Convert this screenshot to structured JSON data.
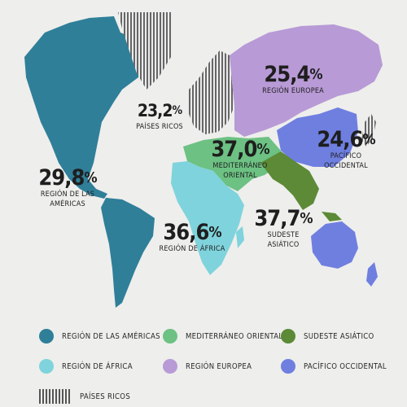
{
  "colors": {
    "americas": "#2f7f99",
    "africa": "#7fd3dc",
    "europe": "#b89ad6",
    "mediterranean": "#6cc183",
    "southeast_asia": "#5c8a36",
    "western_pacific": "#6f7fe0",
    "rich_countries_stripes": "#555555"
  },
  "regions": [
    {
      "key": "americas",
      "value": "29,8",
      "unit": "%",
      "name": "Región de las Américas"
    },
    {
      "key": "africa",
      "value": "36,6",
      "unit": "%",
      "name": "Región de África"
    },
    {
      "key": "mediterranean",
      "value": "37,0",
      "unit": "%",
      "name": "Mediterráneo oriental"
    },
    {
      "key": "europe",
      "value": "25,4",
      "unit": "%",
      "name": "Región Europea"
    },
    {
      "key": "southeast_asia",
      "value": "37,7",
      "unit": "%",
      "name": "Sudeste asiático"
    },
    {
      "key": "western_pacific",
      "value": "24,6",
      "unit": "%",
      "name": "Pacífico occidental"
    },
    {
      "key": "rich",
      "value": "23,2",
      "unit": "%",
      "name": "Países ricos"
    }
  ],
  "legend": [
    {
      "label": "Región de las Américas",
      "color": "#2f7f99"
    },
    {
      "label": "Mediterráneo oriental",
      "color": "#6cc183"
    },
    {
      "label": "Sudeste asiático",
      "color": "#5c8a36"
    },
    {
      "label": "Región de África",
      "color": "#7fd3dc"
    },
    {
      "label": "Región Europea",
      "color": "#b89ad6"
    },
    {
      "label": "Pacífico occidental",
      "color": "#6f7fe0"
    },
    {
      "label": "Países ricos",
      "pattern": "stripes"
    }
  ]
}
